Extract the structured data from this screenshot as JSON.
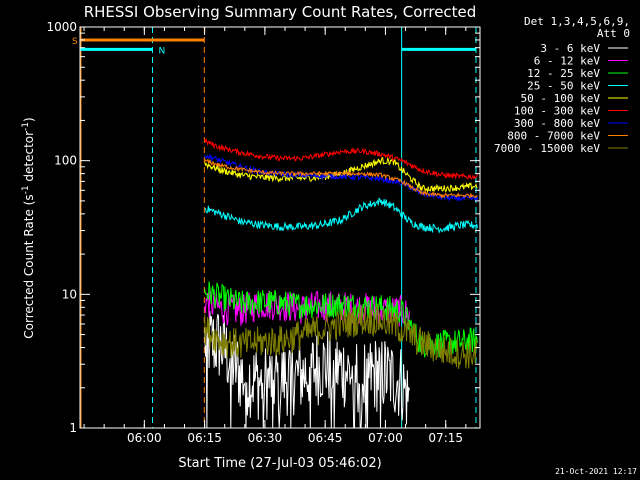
{
  "chart_data": {
    "type": "line",
    "title": "RHESSI Observing Summary Count Rates, Corrected",
    "xlabel": "Start Time (27-Jul-03 05:46:02)",
    "ylabel": "Corrected Count Rate (s",
    "ylabel_sup1": "-1",
    "ylabel_mid": " detector",
    "ylabel_sup2": "-1",
    "ylabel_end": ")",
    "yscale": "log",
    "ylim": [
      1,
      1000
    ],
    "xlim_min": [
      -0.04,
      99.5
    ],
    "x_ticks": [
      {
        "min": 15.97,
        "label": "06:00"
      },
      {
        "min": 30.97,
        "label": "06:15"
      },
      {
        "min": 45.97,
        "label": "06:30"
      },
      {
        "min": 60.97,
        "label": "06:45"
      },
      {
        "min": 75.97,
        "label": "07:00"
      },
      {
        "min": 90.97,
        "label": "07:15"
      }
    ],
    "y_ticks": [
      {
        "value": 1,
        "label": "1"
      },
      {
        "value": 10,
        "label": "10"
      },
      {
        "value": 100,
        "label": "100"
      },
      {
        "value": 1000,
        "label": "1000"
      }
    ],
    "legend": {
      "header_line1": "Det 1,3,4,5,6,9,",
      "header_line2": "Att 0",
      "placement": "right"
    },
    "series": [
      {
        "name": "3 - 6 keV",
        "color": "#ffffff",
        "start": 31,
        "end": 82,
        "points": [
          [
            31,
            4.5
          ],
          [
            35,
            4.2
          ],
          [
            40,
            2.5
          ],
          [
            45,
            2.2
          ],
          [
            50,
            2.4
          ],
          [
            55,
            2.5
          ],
          [
            60,
            3.0
          ],
          [
            65,
            2.8
          ],
          [
            70,
            2.4
          ],
          [
            75,
            2.6
          ],
          [
            80,
            2.2
          ],
          [
            82,
            1.6
          ]
        ],
        "noise": 0.6
      },
      {
        "name": "6 - 12 keV",
        "color": "#ff00ff",
        "start": 31,
        "end": 82,
        "points": [
          [
            31,
            9
          ],
          [
            35,
            7.8
          ],
          [
            40,
            7.5
          ],
          [
            45,
            8.5
          ],
          [
            50,
            8.3
          ],
          [
            55,
            7.8
          ],
          [
            60,
            8.2
          ],
          [
            65,
            8.0
          ],
          [
            70,
            7.9
          ],
          [
            75,
            7.6
          ],
          [
            80,
            7.5
          ],
          [
            82,
            7.0
          ]
        ],
        "noise": 0.12
      },
      {
        "name": "12 - 25 keV",
        "color": "#00ff00",
        "start": 31,
        "end": 99,
        "points": [
          [
            31,
            10.5
          ],
          [
            35,
            9.5
          ],
          [
            40,
            8.5
          ],
          [
            45,
            8.8
          ],
          [
            50,
            8.6
          ],
          [
            55,
            8.3
          ],
          [
            60,
            8.3
          ],
          [
            65,
            8.4
          ],
          [
            70,
            8.2
          ],
          [
            75,
            8.0
          ],
          [
            80,
            7.5
          ],
          [
            85,
            4.2
          ],
          [
            90,
            4.3
          ],
          [
            95,
            4.4
          ],
          [
            99,
            4.6
          ]
        ],
        "noise": 0.1
      },
      {
        "name": "25 - 50 keV",
        "color": "#00ffff",
        "start": 31,
        "end": 99,
        "points": [
          [
            31,
            44
          ],
          [
            35,
            40
          ],
          [
            40,
            35
          ],
          [
            45,
            33
          ],
          [
            50,
            32
          ],
          [
            55,
            32
          ],
          [
            60,
            33
          ],
          [
            65,
            36
          ],
          [
            70,
            45
          ],
          [
            75,
            50
          ],
          [
            78,
            45
          ],
          [
            82,
            35
          ],
          [
            85,
            32
          ],
          [
            90,
            31
          ],
          [
            95,
            33
          ],
          [
            99,
            33
          ]
        ],
        "noise": 0.03
      },
      {
        "name": "50 - 100 keV",
        "color": "#ffff00",
        "start": 31,
        "end": 99,
        "points": [
          [
            31,
            95
          ],
          [
            35,
            85
          ],
          [
            40,
            78
          ],
          [
            45,
            75
          ],
          [
            50,
            74
          ],
          [
            55,
            74
          ],
          [
            60,
            75
          ],
          [
            65,
            80
          ],
          [
            70,
            90
          ],
          [
            75,
            100
          ],
          [
            78,
            98
          ],
          [
            82,
            75
          ],
          [
            85,
            62
          ],
          [
            90,
            62
          ],
          [
            95,
            63
          ],
          [
            99,
            65
          ]
        ],
        "noise": 0.025
      },
      {
        "name": "100 - 300 keV",
        "color": "#ff0000",
        "start": 31,
        "end": 99,
        "points": [
          [
            31,
            140
          ],
          [
            35,
            125
          ],
          [
            40,
            115
          ],
          [
            45,
            108
          ],
          [
            50,
            104
          ],
          [
            55,
            104
          ],
          [
            60,
            110
          ],
          [
            65,
            117
          ],
          [
            70,
            118
          ],
          [
            75,
            112
          ],
          [
            80,
            100
          ],
          [
            85,
            85
          ],
          [
            90,
            78
          ],
          [
            95,
            76
          ],
          [
            99,
            76
          ]
        ],
        "noise": 0.02
      },
      {
        "name": "300 - 800 keV",
        "color": "#0000ff",
        "start": 31,
        "end": 99,
        "points": [
          [
            31,
            110
          ],
          [
            35,
            100
          ],
          [
            40,
            90
          ],
          [
            45,
            82
          ],
          [
            50,
            79
          ],
          [
            55,
            78
          ],
          [
            60,
            77
          ],
          [
            65,
            76
          ],
          [
            70,
            75
          ],
          [
            75,
            73
          ],
          [
            80,
            68
          ],
          [
            85,
            57
          ],
          [
            90,
            53
          ],
          [
            95,
            52
          ],
          [
            99,
            52
          ]
        ],
        "noise": 0.02
      },
      {
        "name": "800 - 7000 keV",
        "color": "#ff8000",
        "start": 31,
        "end": 99,
        "points": [
          [
            31,
            100
          ],
          [
            35,
            92
          ],
          [
            40,
            86
          ],
          [
            45,
            82
          ],
          [
            50,
            80
          ],
          [
            55,
            80
          ],
          [
            60,
            80
          ],
          [
            65,
            80
          ],
          [
            70,
            80
          ],
          [
            75,
            78
          ],
          [
            80,
            70
          ],
          [
            85,
            57
          ],
          [
            90,
            55
          ],
          [
            95,
            55
          ],
          [
            99,
            55
          ]
        ],
        "noise": 0.015
      },
      {
        "name": "7000 - 15000 keV",
        "color": "#808000",
        "start": 31,
        "end": 99,
        "points": [
          [
            31,
            5.5
          ],
          [
            35,
            4.5
          ],
          [
            40,
            4.2
          ],
          [
            45,
            4.4
          ],
          [
            50,
            4.5
          ],
          [
            55,
            5.0
          ],
          [
            60,
            5.5
          ],
          [
            65,
            6.0
          ],
          [
            70,
            6.5
          ],
          [
            75,
            6.4
          ],
          [
            80,
            5.5
          ],
          [
            85,
            4.3
          ],
          [
            90,
            3.8
          ],
          [
            95,
            3.6
          ],
          [
            99,
            3.6
          ]
        ],
        "noise": 0.12
      }
    ],
    "flags": [
      {
        "name": "S",
        "color": "#ff8000",
        "y": 800,
        "x_start": -0.04,
        "x_end": 30.9
      },
      {
        "name": "N",
        "color": "#00ffff",
        "y": 680,
        "x_start": -0.04,
        "x_end": 18.0
      }
    ],
    "extra_flag_segments": [
      {
        "color": "#00ffff",
        "y": 680,
        "x_start": 80.0,
        "x_end": 98.5
      }
    ],
    "vlines": [
      {
        "min": 0.2,
        "color": "#ff8000",
        "style": "solid"
      },
      {
        "min": 30.9,
        "color": "#ff8000",
        "style": "dashed"
      },
      {
        "min": 18.0,
        "color": "#00ffff",
        "style": "dashed"
      },
      {
        "min": 80.0,
        "color": "#00ffff",
        "style": "solid"
      },
      {
        "min": 98.5,
        "color": "#00ffff",
        "style": "dashed"
      }
    ]
  },
  "footer": {
    "timestamp": "21-Oct-2021 12:17"
  }
}
